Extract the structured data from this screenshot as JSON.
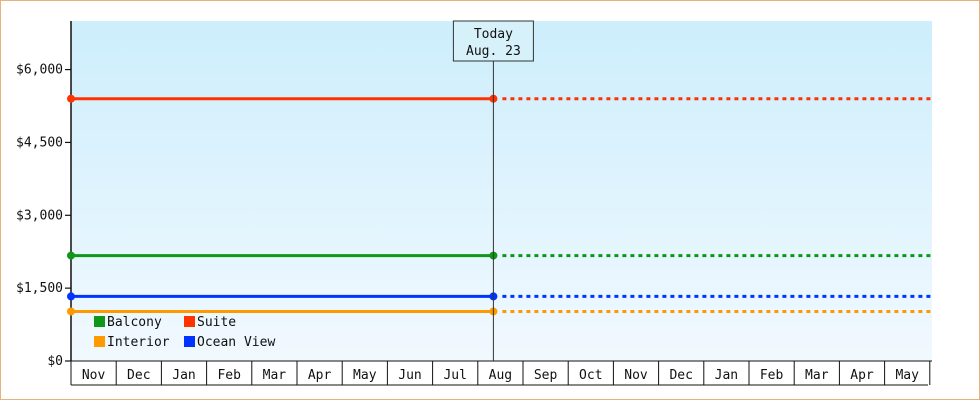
{
  "chart_data": {
    "type": "line",
    "categories": [
      "Nov",
      "Dec",
      "Jan",
      "Feb",
      "Mar",
      "Apr",
      "May",
      "Jun",
      "Jul",
      "Aug",
      "Sep",
      "Oct",
      "Nov",
      "Dec",
      "Jan",
      "Feb",
      "Mar",
      "Apr",
      "May"
    ],
    "today_index": 9.5,
    "today_label": {
      "line1": "Today",
      "line2": "Aug. 23"
    },
    "ylim": [
      0,
      7000
    ],
    "yticks": [
      0,
      1500,
      3000,
      4500,
      6000
    ],
    "ytick_labels": [
      "$0",
      "$1,500",
      "$3,000",
      "$4,500",
      "$6,000"
    ],
    "series": [
      {
        "name": "Balcony",
        "color": "#109618",
        "value": 2170
      },
      {
        "name": "Suite",
        "color": "#ff3300",
        "value": 5400
      },
      {
        "name": "Interior",
        "color": "#ff9900",
        "value": 1020
      },
      {
        "name": "Ocean View",
        "color": "#0033ff",
        "value": 1330
      }
    ],
    "legend": {
      "position": "bottom-left",
      "columns": 2
    },
    "background": {
      "top": "#cdeefc",
      "bottom": "#f1f9fe"
    }
  }
}
